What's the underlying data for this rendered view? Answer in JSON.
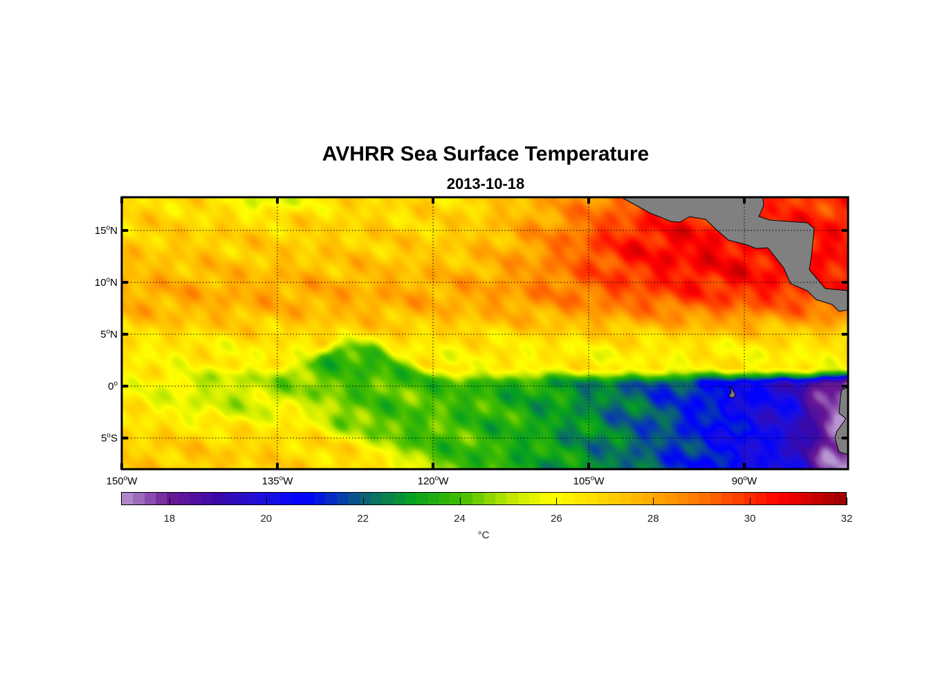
{
  "title": "AVHRR Sea Surface Temperature",
  "subtitle": "2013-10-18",
  "map": {
    "lon_range": [
      -150,
      -80
    ],
    "lat_range": [
      -8,
      18.2
    ],
    "deg_symbol": "o",
    "lat_ticks": [
      {
        "value": 15,
        "deg": "15",
        "hemi": "N"
      },
      {
        "value": 10,
        "deg": "10",
        "hemi": "N"
      },
      {
        "value": 5,
        "deg": "5",
        "hemi": "N"
      },
      {
        "value": 0,
        "deg": "0",
        "hemi": ""
      },
      {
        "value": -5,
        "deg": "5",
        "hemi": "S"
      }
    ],
    "lon_ticks": [
      {
        "value": -150,
        "deg": "150",
        "hemi": "W"
      },
      {
        "value": -135,
        "deg": "135",
        "hemi": "W"
      },
      {
        "value": -120,
        "deg": "120",
        "hemi": "W"
      },
      {
        "value": -105,
        "deg": "105",
        "hemi": "W"
      },
      {
        "value": -90,
        "deg": "90",
        "hemi": "W"
      }
    ],
    "land_color": "#808080"
  },
  "colorbar": {
    "min": 17,
    "max": 32,
    "ticks": [
      "18",
      "20",
      "22",
      "24",
      "26",
      "28",
      "30",
      "32"
    ],
    "unit": "°C",
    "stops": [
      [
        17,
        "#b896d0"
      ],
      [
        18,
        "#6a1a94"
      ],
      [
        19,
        "#3a08a8"
      ],
      [
        20,
        "#1a10e0"
      ],
      [
        20.8,
        "#0000ff"
      ],
      [
        21.6,
        "#0840a8"
      ],
      [
        22,
        "#0a6078"
      ],
      [
        23,
        "#06a020"
      ],
      [
        24,
        "#40bc00"
      ],
      [
        25,
        "#bce600"
      ],
      [
        25.9,
        "#ffff00"
      ],
      [
        27,
        "#ffd400"
      ],
      [
        28,
        "#ffaa00"
      ],
      [
        29,
        "#ff7400"
      ],
      [
        30,
        "#ff2e00"
      ],
      [
        30.6,
        "#ff0000"
      ],
      [
        32,
        "#9a0000"
      ]
    ]
  }
}
